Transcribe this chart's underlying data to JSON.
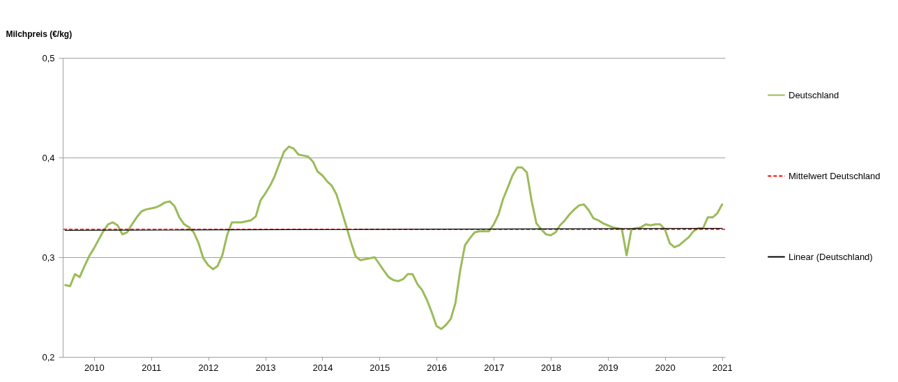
{
  "chart_data": {
    "type": "line",
    "ylabel": "Milchpreis (€/kg)",
    "x": [
      "2009-07",
      "2009-08",
      "2009-09",
      "2009-10",
      "2009-11",
      "2009-12",
      "2010-01",
      "2010-02",
      "2010-03",
      "2010-04",
      "2010-05",
      "2010-06",
      "2010-07",
      "2010-08",
      "2010-09",
      "2010-10",
      "2010-11",
      "2010-12",
      "2011-01",
      "2011-02",
      "2011-03",
      "2011-04",
      "2011-05",
      "2011-06",
      "2011-07",
      "2011-08",
      "2011-09",
      "2011-10",
      "2011-11",
      "2011-12",
      "2012-01",
      "2012-02",
      "2012-03",
      "2012-04",
      "2012-05",
      "2012-06",
      "2012-07",
      "2012-08",
      "2012-09",
      "2012-10",
      "2012-11",
      "2012-12",
      "2013-01",
      "2013-02",
      "2013-03",
      "2013-04",
      "2013-05",
      "2013-06",
      "2013-07",
      "2013-08",
      "2013-09",
      "2013-10",
      "2013-11",
      "2013-12",
      "2014-01",
      "2014-02",
      "2014-03",
      "2014-04",
      "2014-05",
      "2014-06",
      "2014-07",
      "2014-08",
      "2014-09",
      "2014-10",
      "2014-11",
      "2014-12",
      "2015-01",
      "2015-02",
      "2015-03",
      "2015-04",
      "2015-05",
      "2015-06",
      "2015-07",
      "2015-08",
      "2015-09",
      "2015-10",
      "2015-11",
      "2015-12",
      "2016-01",
      "2016-02",
      "2016-03",
      "2016-04",
      "2016-05",
      "2016-06",
      "2016-07",
      "2016-08",
      "2016-09",
      "2016-10",
      "2016-11",
      "2016-12",
      "2017-01",
      "2017-02",
      "2017-03",
      "2017-04",
      "2017-05",
      "2017-06",
      "2017-07",
      "2017-08",
      "2017-09",
      "2017-10",
      "2017-11",
      "2017-12",
      "2018-01",
      "2018-02",
      "2018-03",
      "2018-04",
      "2018-05",
      "2018-06",
      "2018-07",
      "2018-08",
      "2018-09",
      "2018-10",
      "2018-11",
      "2018-12",
      "2019-01",
      "2019-02",
      "2019-03",
      "2019-04",
      "2019-05",
      "2019-06",
      "2019-07",
      "2019-08",
      "2019-09",
      "2019-10",
      "2019-11",
      "2019-12",
      "2020-01",
      "2020-02",
      "2020-03",
      "2020-04",
      "2020-05",
      "2020-06",
      "2020-07",
      "2020-08",
      "2020-09",
      "2020-10",
      "2020-11",
      "2020-12",
      "2021-01"
    ],
    "series": [
      {
        "name": "Deutschland",
        "color": "#9bbb59",
        "values": [
          0.272,
          0.271,
          0.283,
          0.28,
          0.291,
          0.301,
          0.309,
          0.318,
          0.326,
          0.333,
          0.335,
          0.332,
          0.323,
          0.325,
          0.333,
          0.34,
          0.346,
          0.348,
          0.349,
          0.35,
          0.352,
          0.355,
          0.356,
          0.351,
          0.34,
          0.333,
          0.33,
          0.325,
          0.314,
          0.299,
          0.292,
          0.288,
          0.291,
          0.302,
          0.322,
          0.335,
          0.335,
          0.335,
          0.336,
          0.337,
          0.341,
          0.357,
          0.364,
          0.372,
          0.381,
          0.394,
          0.406,
          0.411,
          0.409,
          0.403,
          0.402,
          0.401,
          0.396,
          0.386,
          0.382,
          0.376,
          0.372,
          0.363,
          0.348,
          0.332,
          0.316,
          0.301,
          0.297,
          0.298,
          0.299,
          0.3,
          0.293,
          0.286,
          0.28,
          0.277,
          0.276,
          0.278,
          0.283,
          0.283,
          0.273,
          0.267,
          0.257,
          0.245,
          0.231,
          0.228,
          0.232,
          0.238,
          0.254,
          0.287,
          0.312,
          0.319,
          0.325,
          0.326,
          0.326,
          0.326,
          0.333,
          0.343,
          0.358,
          0.37,
          0.382,
          0.39,
          0.39,
          0.385,
          0.356,
          0.334,
          0.328,
          0.323,
          0.322,
          0.325,
          0.332,
          0.337,
          0.343,
          0.348,
          0.352,
          0.353,
          0.347,
          0.339,
          0.337,
          0.334,
          0.332,
          0.33,
          0.329,
          0.328,
          0.302,
          0.328,
          0.329,
          0.33,
          0.333,
          0.332,
          0.333,
          0.333,
          0.328,
          0.314,
          0.31,
          0.312,
          0.316,
          0.32,
          0.326,
          0.329,
          0.329,
          0.34,
          0.34,
          0.344,
          0.353
        ]
      },
      {
        "name": "Linear (Deutschland)",
        "type": "line",
        "color": "#000000",
        "x": [
          "2009-07",
          "2021-01"
        ],
        "values": [
          0.327,
          0.329
        ]
      }
    ],
    "ref_lines": [
      {
        "axis": "y",
        "value": 0.328,
        "label": "Mittelwert Deutschland",
        "color": "#ff0000",
        "line_style": "dashed"
      }
    ],
    "xlim": [
      "2009-06-15",
      "2021-01-20"
    ],
    "xticks": [
      "2010",
      "2011",
      "2012",
      "2013",
      "2014",
      "2015",
      "2016",
      "2017",
      "2018",
      "2019",
      "2020",
      "2021"
    ],
    "ylim": [
      0.2,
      0.5
    ],
    "yticks": [
      {
        "value": 0.2,
        "label": "0,2"
      },
      {
        "value": 0.3,
        "label": "0,3"
      },
      {
        "value": 0.4,
        "label": "0,4"
      },
      {
        "value": 0.5,
        "label": "0,5"
      }
    ],
    "grid": "y",
    "legend": "right"
  }
}
